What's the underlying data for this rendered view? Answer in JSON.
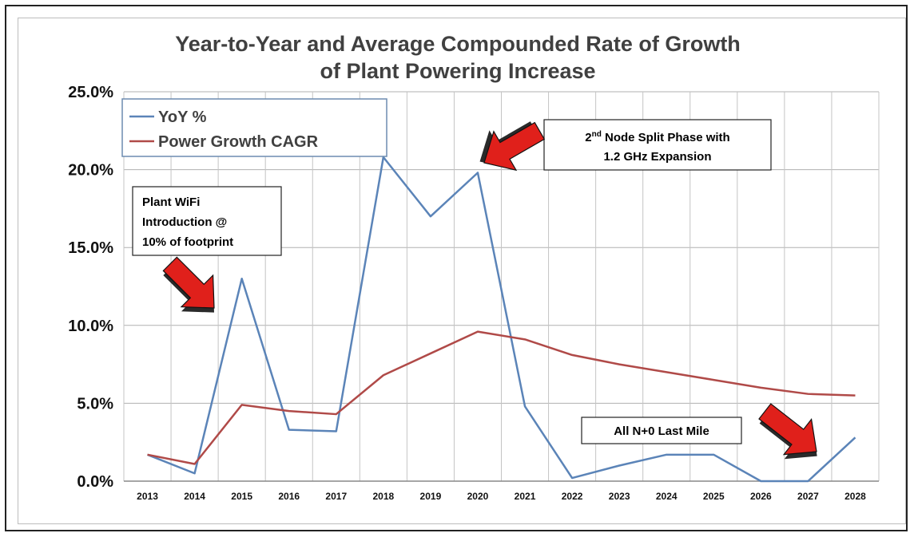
{
  "chart_data": {
    "type": "line",
    "title_lines": [
      "Year-to-Year and Average Compounded Rate of Growth",
      "of Plant Powering Increase"
    ],
    "xlabel": "",
    "ylabel": "",
    "x": [
      "2013",
      "2014",
      "2015",
      "2016",
      "2017",
      "2018",
      "2019",
      "2020",
      "2021",
      "2022",
      "2023",
      "2024",
      "2025",
      "2026",
      "2027",
      "2028"
    ],
    "ylim": [
      0,
      25
    ],
    "yticks": [
      {
        "value": 0,
        "label": "0.0%"
      },
      {
        "value": 5,
        "label": "5.0%"
      },
      {
        "value": 10,
        "label": "10.0%"
      },
      {
        "value": 15,
        "label": "15.0%"
      },
      {
        "value": 20,
        "label": "20.0%"
      },
      {
        "value": 25,
        "label": "25.0%"
      }
    ],
    "grid": true,
    "legend_position": "top-left",
    "series": [
      {
        "name": "YoY %",
        "color": "#5b84b8",
        "values": [
          1.7,
          0.5,
          13.0,
          3.3,
          3.2,
          20.8,
          17.0,
          19.8,
          4.8,
          0.2,
          1.0,
          1.7,
          1.7,
          0.0,
          0.0,
          2.8
        ]
      },
      {
        "name": "Power Growth CAGR",
        "color": "#b04a48",
        "values": [
          1.7,
          1.1,
          4.9,
          4.5,
          4.3,
          6.8,
          8.2,
          9.6,
          9.1,
          8.1,
          7.5,
          7.0,
          6.5,
          6.0,
          5.6,
          5.5
        ]
      }
    ],
    "annotations": [
      {
        "lines": [
          "Plant WiFi",
          "Introduction @",
          "10% of footprint"
        ]
      },
      {
        "lines": [
          "2nd Node Split Phase with",
          "1.2 GHz Expansion"
        ],
        "superscript": "nd"
      },
      {
        "lines": [
          "All N+0 Last Mile"
        ]
      }
    ],
    "arrow_color": "#e0201b"
  }
}
